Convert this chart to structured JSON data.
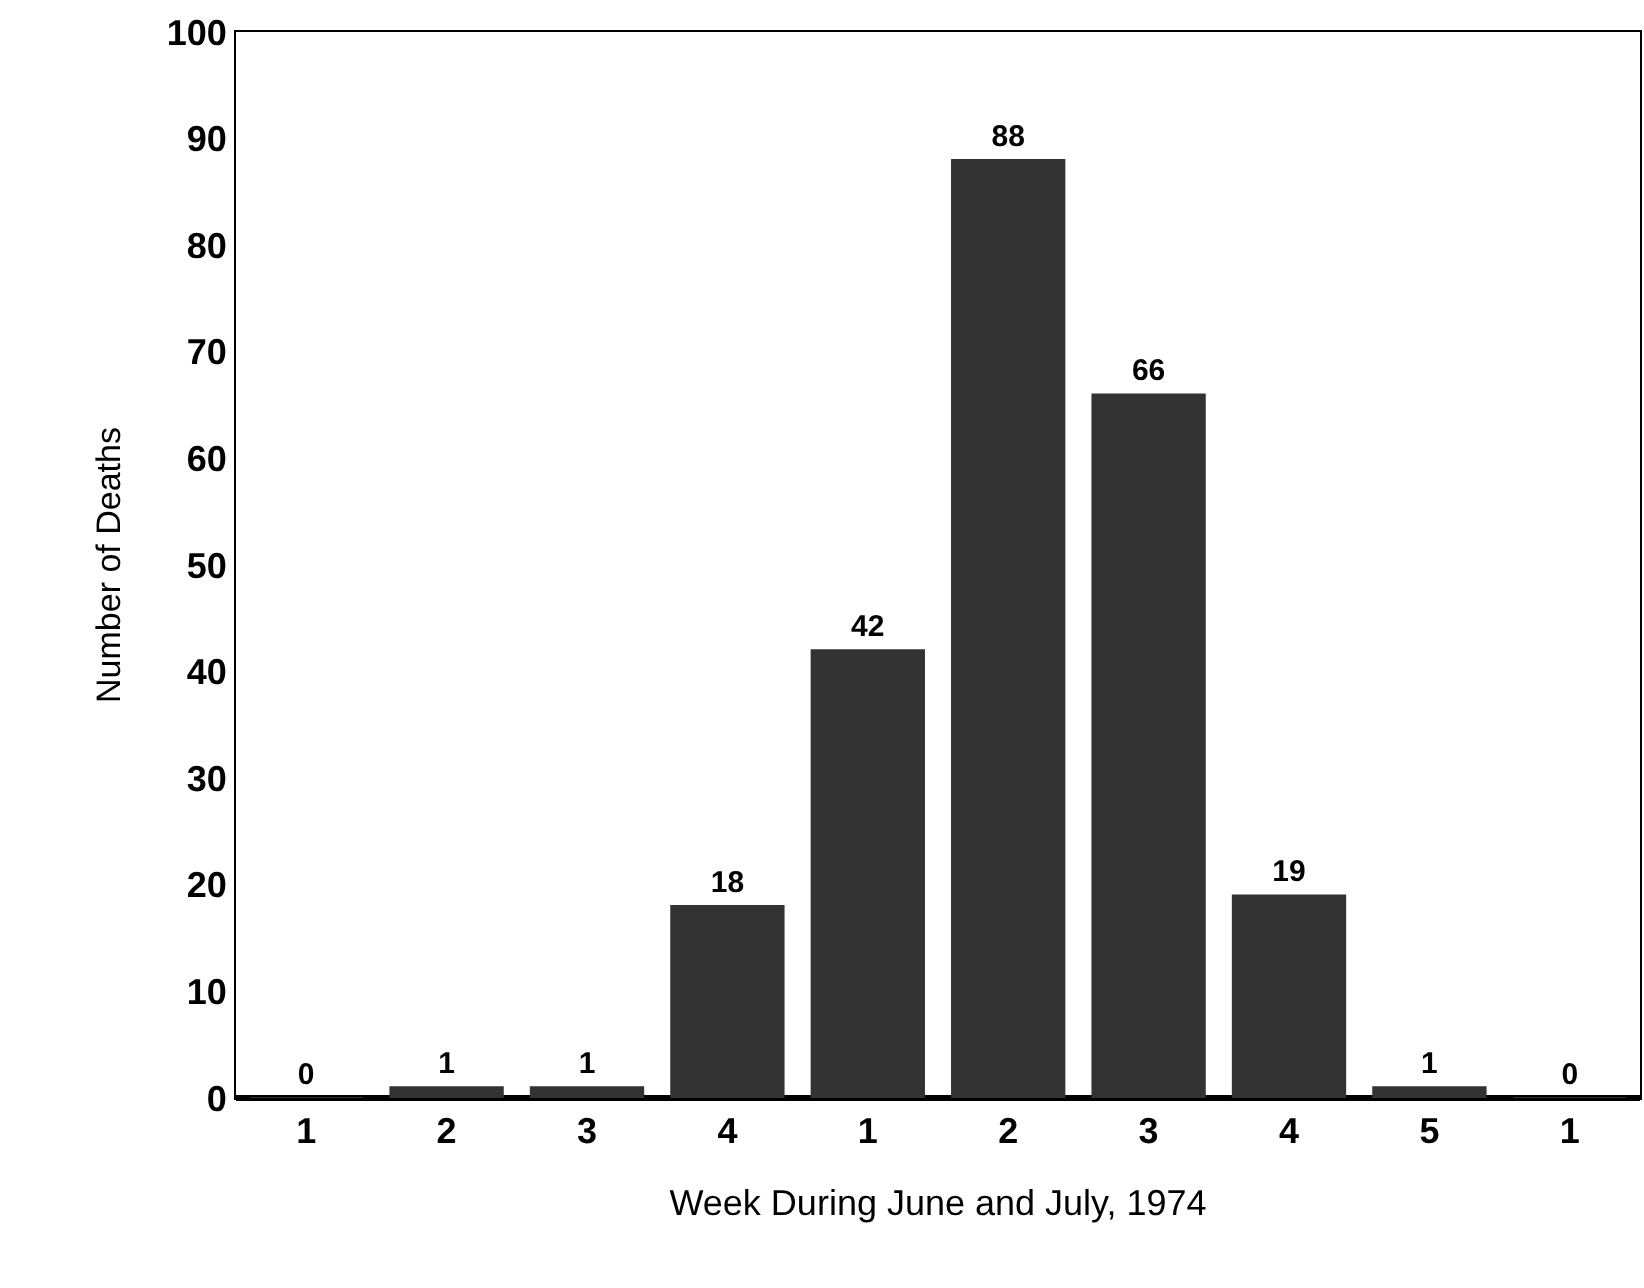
{
  "chart_data": {
    "type": "bar",
    "xlabel": "Week During June and July, 1974",
    "ylabel": "Number of Deaths",
    "categories": [
      "1",
      "2",
      "3",
      "4",
      "1",
      "2",
      "3",
      "4",
      "5",
      "1"
    ],
    "values": [
      0,
      1,
      1,
      18,
      42,
      88,
      66,
      19,
      1,
      0
    ],
    "color": "#333333",
    "ylim": [
      0,
      100
    ],
    "yticks": [
      0,
      10,
      20,
      30,
      40,
      50,
      60,
      70,
      80,
      90,
      100
    ],
    "data_labels": true
  }
}
